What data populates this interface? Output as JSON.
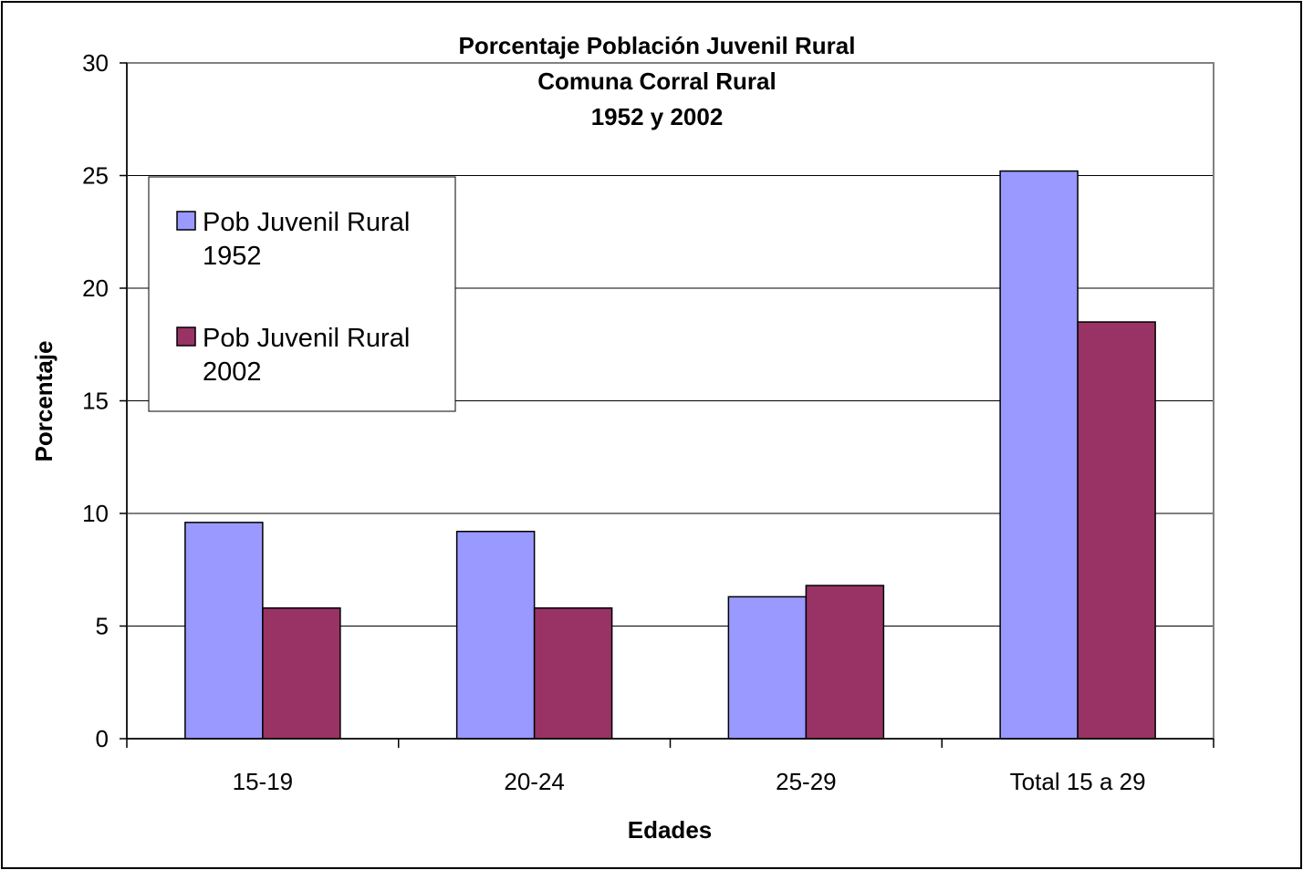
{
  "chart_data": {
    "type": "bar",
    "title_lines": [
      "Porcentaje Población Juvenil Rural",
      "Comuna Corral Rural",
      "1952 y 2002"
    ],
    "xlabel": "Edades",
    "ylabel": "Porcentaje",
    "categories": [
      "15-19",
      "20-24",
      "25-29",
      "Total 15 a 29"
    ],
    "series": [
      {
        "name_lines": [
          "Pob Juvenil Rural",
          "1952"
        ],
        "color": "#9999FF",
        "values": [
          9.6,
          9.2,
          6.3,
          25.2
        ]
      },
      {
        "name_lines": [
          "Pob Juvenil Rural",
          "2002"
        ],
        "color": "#993366",
        "values": [
          5.8,
          5.8,
          6.8,
          18.5
        ]
      }
    ],
    "ylim": [
      0,
      30
    ],
    "yticks": [
      0,
      5,
      10,
      15,
      20,
      25,
      30
    ],
    "grid": true,
    "legend_position": "upper-left"
  }
}
